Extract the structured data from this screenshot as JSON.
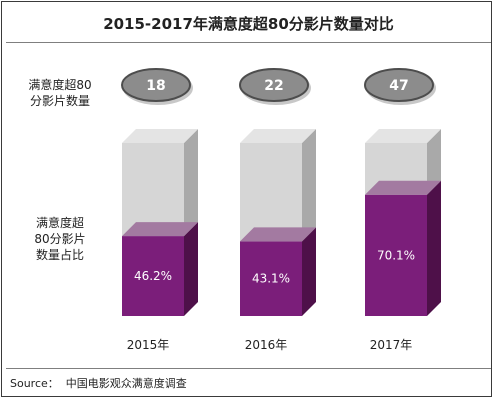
{
  "chart_data": {
    "type": "bar",
    "title": "2015-2017年满意度超80分影片数量对比",
    "categories": [
      "2015年",
      "2016年",
      "2017年"
    ],
    "series": [
      {
        "name": "满意度超80分影片数量",
        "values": [
          18,
          22,
          47
        ]
      },
      {
        "name": "满意度超80分影片数量占比",
        "values": [
          46.2,
          43.1,
          70.1
        ]
      }
    ],
    "value_labels": [
      "18",
      "22",
      "47"
    ],
    "percent_labels": [
      "46.2%",
      "43.1%",
      "70.1%"
    ],
    "ylim": [
      0,
      100
    ],
    "count_row_label": "满意度超80\n分影片数量",
    "ratio_row_label": "满意度超\n80分影片\n数量占比",
    "colors": {
      "filled": "#7b1e7a",
      "filled_side": "#4e1049",
      "filled_top": "#a37aa1",
      "empty": "#d6d6d6",
      "empty_side": "#a9a9a9",
      "empty_top": "#e4e4e4",
      "bubble": "#8c8c8c",
      "bubble_border": "#4d4d4d"
    },
    "grid": false
  },
  "source": "Source：  中国电影观众满意度调查"
}
